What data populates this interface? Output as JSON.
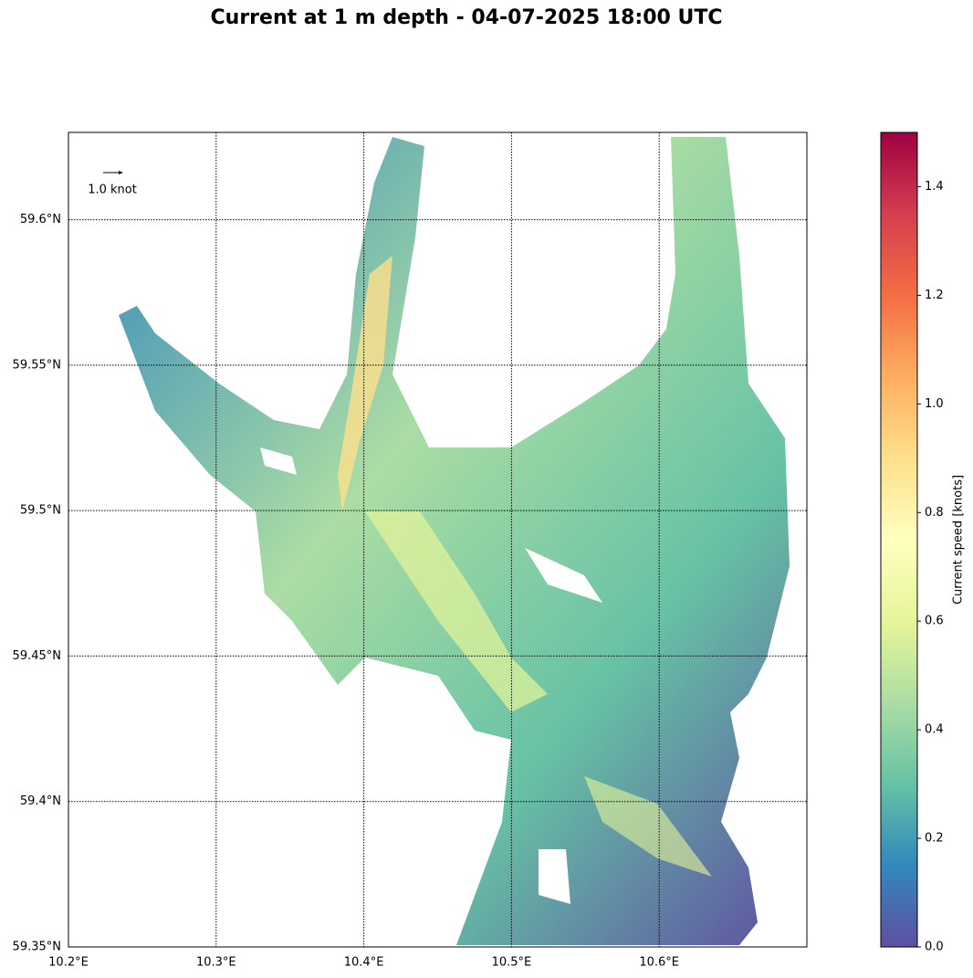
{
  "chart_data": {
    "type": "quiver-map",
    "title": "Current at 1 m depth - 04-07-2025 18:00 UTC",
    "xlim": [
      10.2,
      10.7
    ],
    "ylim": [
      59.35,
      59.63
    ],
    "xticks": [
      {
        "value": 10.2,
        "label": "10.2°E"
      },
      {
        "value": 10.3,
        "label": "10.3°E"
      },
      {
        "value": 10.4,
        "label": "10.4°E"
      },
      {
        "value": 10.5,
        "label": "10.5°E"
      },
      {
        "value": 10.6,
        "label": "10.6°E"
      }
    ],
    "yticks": [
      {
        "value": 59.35,
        "label": "59.35°N"
      },
      {
        "value": 59.4,
        "label": "59.4°N"
      },
      {
        "value": 59.45,
        "label": "59.45°N"
      },
      {
        "value": 59.5,
        "label": "59.5°N"
      },
      {
        "value": 59.55,
        "label": "59.55°N"
      },
      {
        "value": 59.6,
        "label": "59.6°N"
      }
    ],
    "grid": true,
    "quiver_key": "1.0 knot",
    "colorbar": {
      "label": "Current speed [knots]",
      "lim": [
        0,
        1.5
      ],
      "ticks": [
        {
          "value": 0,
          "label": "0.0"
        },
        {
          "value": 0.2,
          "label": "0.2"
        },
        {
          "value": 0.4,
          "label": "0.4"
        },
        {
          "value": 0.6,
          "label": "0.6"
        },
        {
          "value": 0.8,
          "label": "0.8"
        },
        {
          "value": 1.0,
          "label": "1.0"
        },
        {
          "value": 1.2,
          "label": "1.2"
        },
        {
          "value": 1.4,
          "label": "1.4"
        }
      ],
      "colors": [
        "#5e4fa2",
        "#3288bd",
        "#66c2a5",
        "#abdda4",
        "#e6f598",
        "#ffffbf",
        "#fee08b",
        "#fdae61",
        "#f46d43",
        "#d53e4f",
        "#9e0142"
      ]
    }
  }
}
